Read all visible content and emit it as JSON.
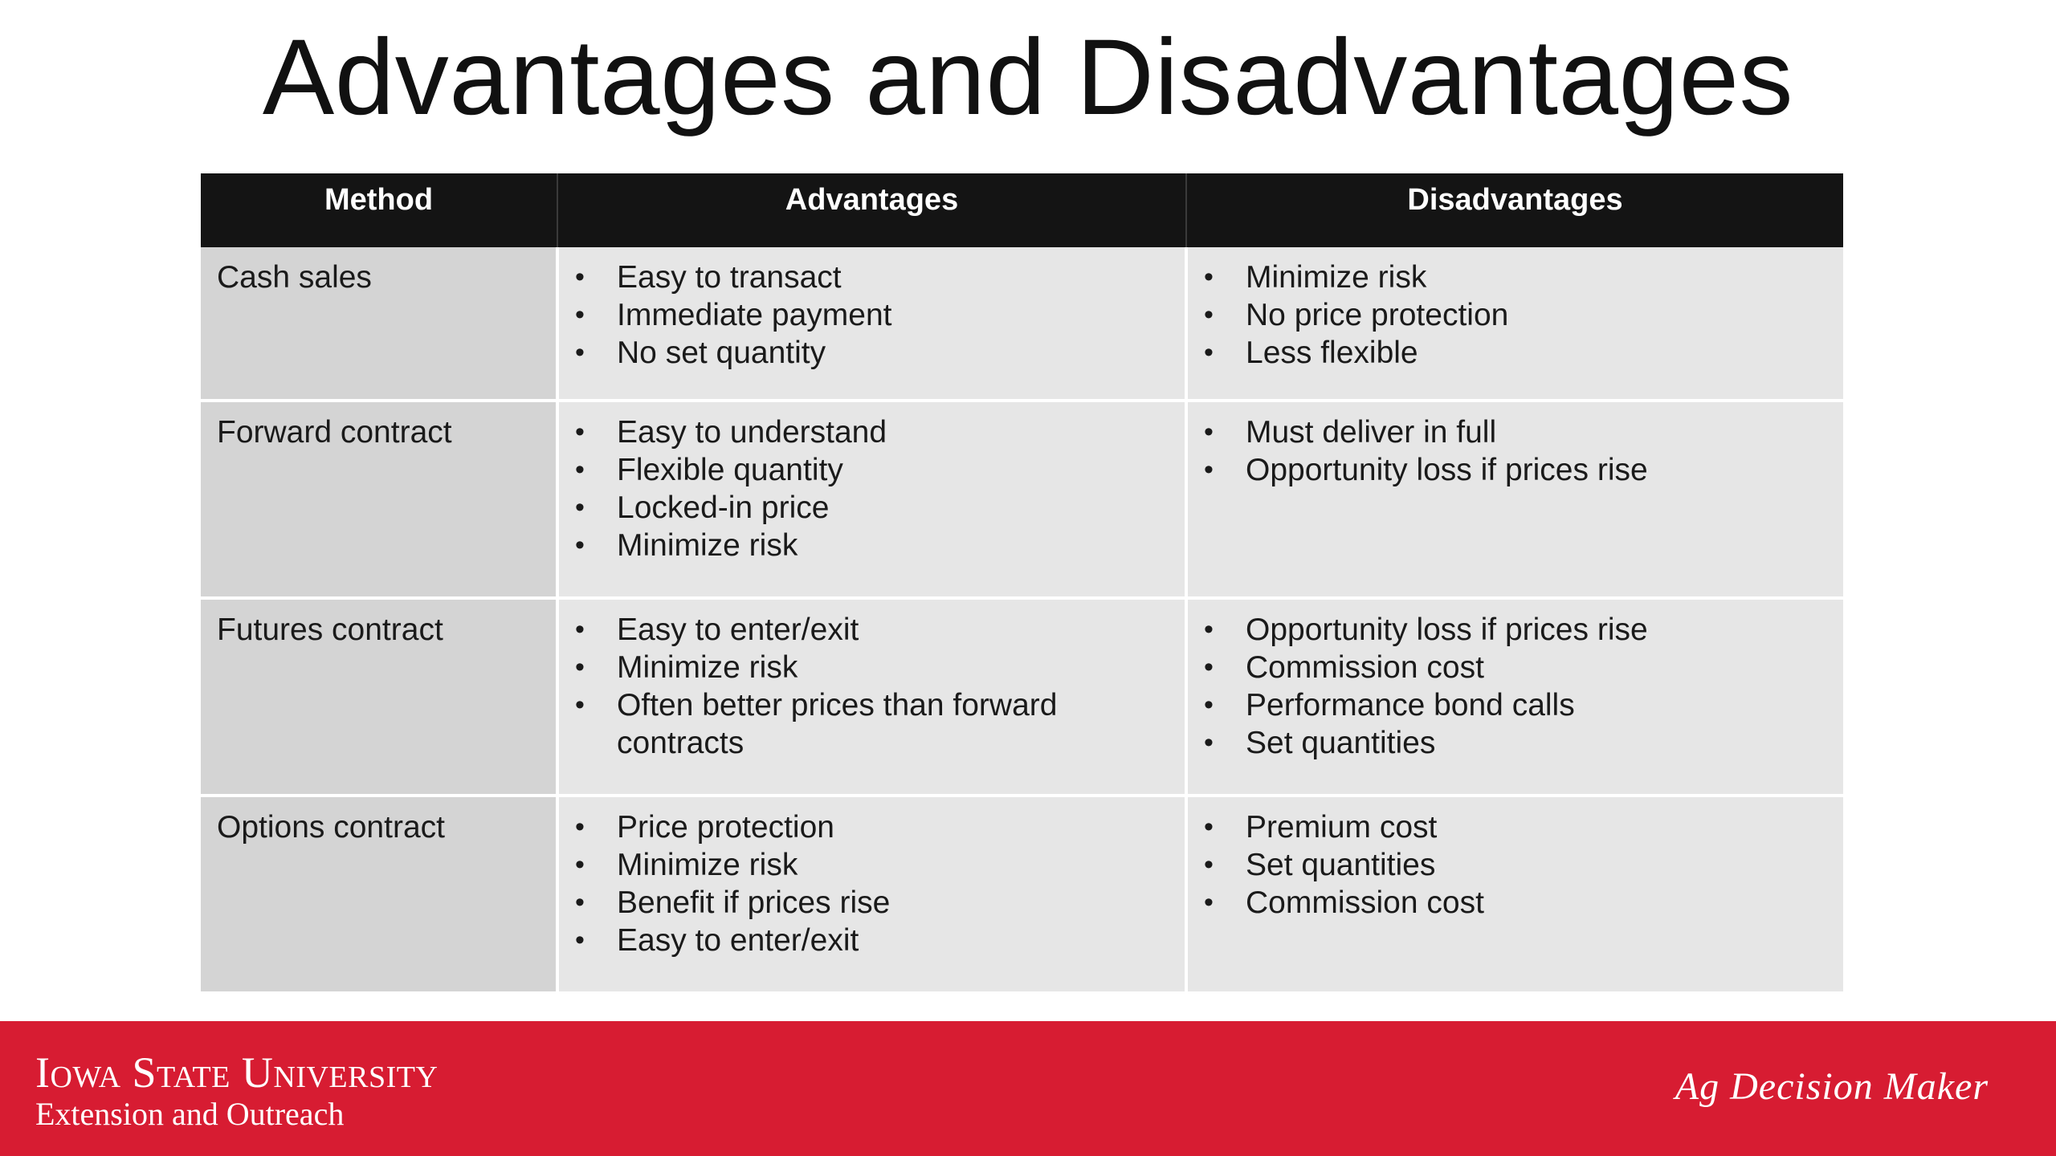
{
  "slide": {
    "title": "Advantages and Disadvantages"
  },
  "table": {
    "headers": [
      "Method",
      "Advantages",
      "Disadvantages"
    ],
    "rows": [
      {
        "method": "Cash sales",
        "advantages": [
          "Easy to transact",
          "Immediate payment",
          "No set quantity"
        ],
        "disadvantages": [
          "Minimize risk",
          "No price protection",
          "Less flexible"
        ]
      },
      {
        "method": "Forward contract",
        "advantages": [
          "Easy to understand",
          "Flexible quantity",
          "Locked-in price",
          "Minimize risk"
        ],
        "disadvantages": [
          "Must deliver in full",
          "Opportunity loss if prices rise"
        ]
      },
      {
        "method": "Futures contract",
        "advantages": [
          "Easy to enter/exit",
          "Minimize risk",
          "Often better prices than forward contracts"
        ],
        "disadvantages": [
          "Opportunity loss if prices rise",
          "Commission cost",
          "Performance bond calls",
          "Set quantities"
        ]
      },
      {
        "method": "Options contract",
        "advantages": [
          "Price protection",
          "Minimize risk",
          "Benefit if prices rise",
          "Easy to enter/exit"
        ],
        "disadvantages": [
          "Premium cost",
          "Set quantities",
          "Commission cost"
        ]
      }
    ]
  },
  "footer": {
    "logo_line1": "Iowa State University",
    "logo_line2": "Extension and Outreach",
    "brand": "Ag Decision Maker",
    "background_color": "#d71c32"
  }
}
